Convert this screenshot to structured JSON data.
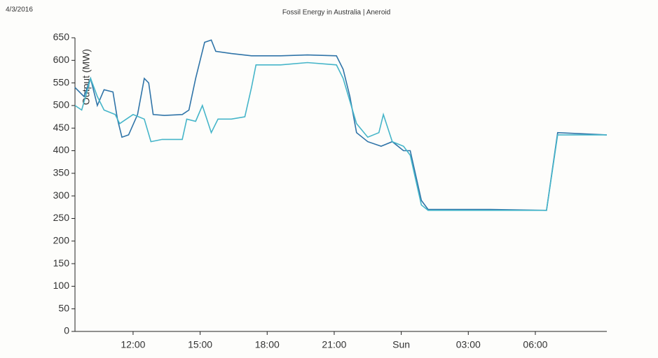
{
  "chart_data": {
    "type": "line",
    "date": "4/3/2016",
    "title": "Fossil Energy in Australia | Aneroid",
    "y_label": "Output (MW)",
    "xlim": [
      9.4,
      33.2
    ],
    "xticks": [
      {
        "value": 12,
        "label": "12:00"
      },
      {
        "value": 15,
        "label": "15:00"
      },
      {
        "value": 18,
        "label": "18:00"
      },
      {
        "value": 21,
        "label": "21:00"
      },
      {
        "value": 24,
        "label": "Sun"
      },
      {
        "value": 27,
        "label": "03:00"
      },
      {
        "value": 30,
        "label": "06:00"
      }
    ],
    "ylim": [
      0,
      650
    ],
    "yticks": [
      0,
      50,
      100,
      150,
      200,
      250,
      300,
      350,
      400,
      450,
      500,
      550,
      600,
      650
    ],
    "grid": false,
    "series": [
      {
        "color": "#2f74a8",
        "x": [
          9.4,
          9.8,
          10.1,
          10.4,
          10.7,
          11.1,
          11.3,
          11.5,
          11.8,
          12.2,
          12.5,
          12.7,
          12.9,
          13.4,
          14.2,
          14.5,
          14.8,
          15.0,
          15.2,
          15.5,
          15.7,
          16.4,
          17.3,
          18.6,
          19.8,
          21.1,
          21.4,
          21.7,
          22.0,
          22.5,
          23.1,
          23.6,
          24.1,
          24.4,
          24.9,
          25.2,
          28.0,
          30.5,
          31.0,
          33.2
        ],
        "values": [
          540,
          520,
          560,
          500,
          535,
          530,
          470,
          430,
          435,
          480,
          560,
          550,
          480,
          478,
          480,
          490,
          560,
          600,
          640,
          645,
          620,
          615,
          610,
          610,
          612,
          610,
          580,
          520,
          440,
          420,
          410,
          420,
          400,
          400,
          290,
          270,
          270,
          268,
          440,
          435
        ]
      },
      {
        "color": "#45b5c9",
        "x": [
          9.4,
          9.7,
          10.1,
          10.4,
          10.7,
          11.2,
          11.4,
          12.0,
          12.5,
          12.8,
          13.3,
          14.2,
          14.4,
          14.8,
          15.1,
          15.5,
          15.8,
          16.4,
          17.0,
          17.3,
          17.5,
          18.6,
          19.8,
          21.1,
          21.4,
          22.0,
          22.5,
          23.0,
          23.2,
          23.6,
          24.1,
          24.4,
          24.9,
          25.2,
          28.0,
          30.5,
          31.0,
          33.2
        ],
        "values": [
          500,
          490,
          560,
          520,
          490,
          480,
          460,
          480,
          470,
          420,
          425,
          425,
          470,
          465,
          500,
          440,
          470,
          470,
          475,
          540,
          590,
          590,
          595,
          590,
          560,
          460,
          430,
          440,
          480,
          420,
          410,
          390,
          280,
          268,
          268,
          268,
          435,
          435
        ]
      }
    ]
  }
}
